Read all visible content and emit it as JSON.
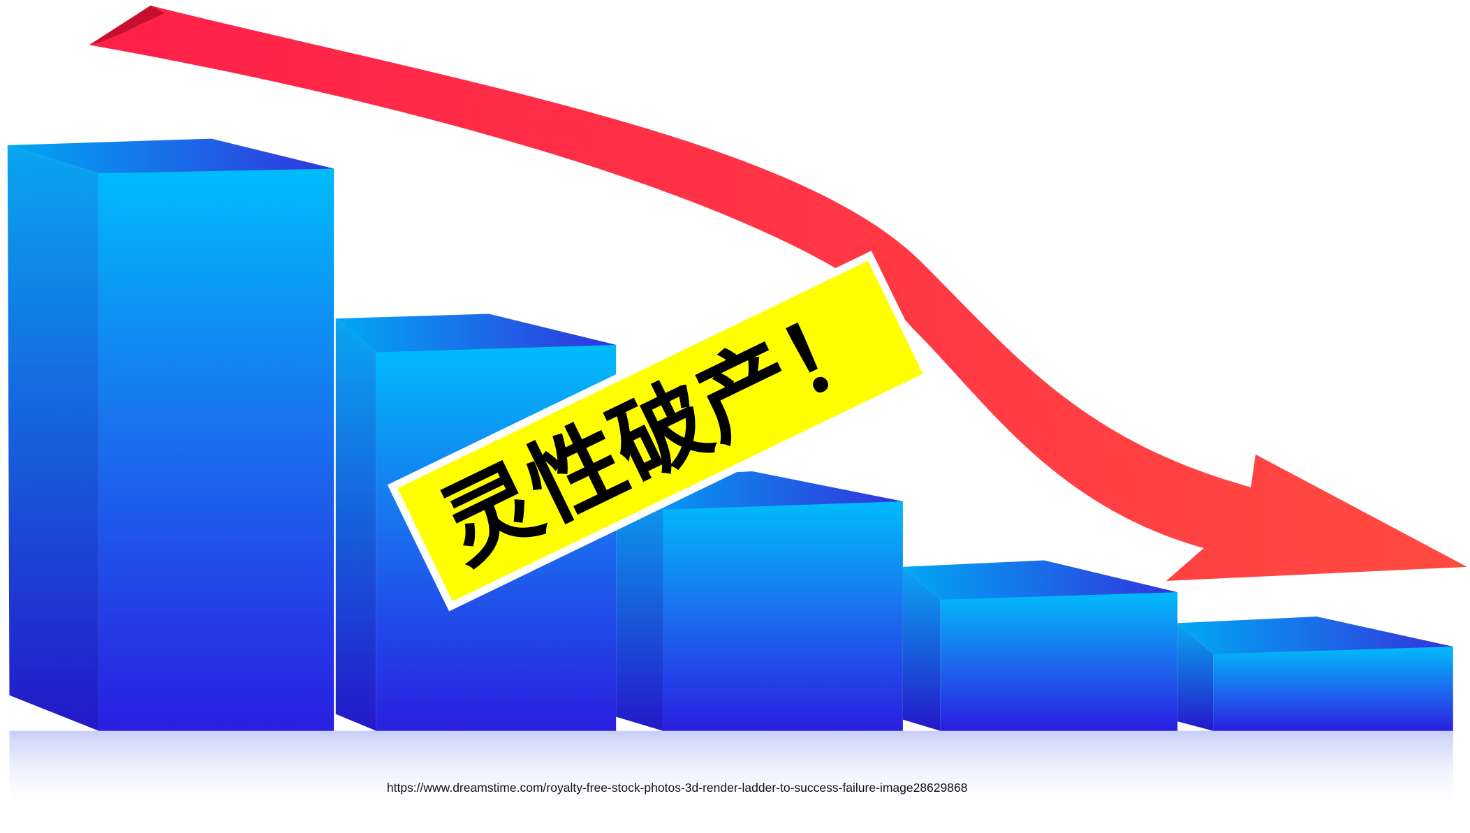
{
  "banner": {
    "label": "灵性破产！"
  },
  "source": {
    "url": "https://www.dreamstime.com/royalty-free-stock-photos-3d-render-ladder-to-success-failure-image28629868"
  }
}
